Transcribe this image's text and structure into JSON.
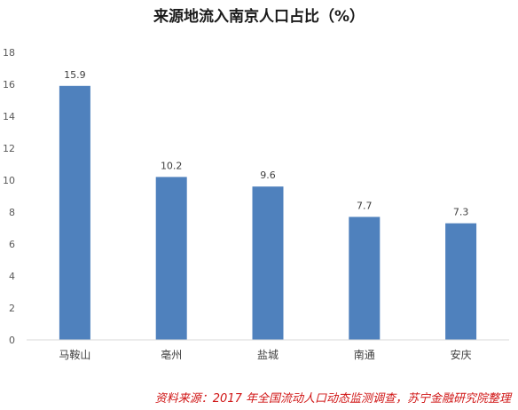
{
  "chart_data": {
    "type": "bar",
    "title": "来源地流入南京人口占比（%）",
    "categories": [
      "马鞍山",
      "亳州",
      "盐城",
      "南通",
      "安庆"
    ],
    "values": [
      15.9,
      10.2,
      9.6,
      7.7,
      7.3
    ],
    "data_labels": [
      "15.9",
      "10.2",
      "9.6",
      "7.7",
      "7.3"
    ],
    "yticks": [
      "0",
      "2",
      "4",
      "6",
      "8",
      "10",
      "12",
      "14",
      "16",
      "18"
    ],
    "ylim": [
      0,
      18
    ],
    "xlabel": "",
    "ylabel": "",
    "grid": false,
    "bar_color": "#4f81bd"
  },
  "source_note": "资料来源：2017 年全国流动人口动态监测调查，苏宁金融研究院整理"
}
